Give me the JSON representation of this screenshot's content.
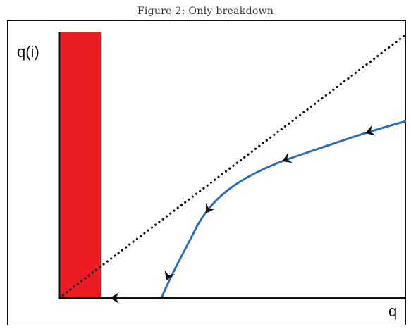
{
  "caption": "Figure 2: Only breakdown",
  "axes": {
    "y_label": "q(i)",
    "x_label": "q"
  },
  "colors": {
    "shaded_region": "#ec1c24",
    "trajectory": "#2f6db5",
    "axis": "#111111",
    "arrowhead": "#111111",
    "diagonal": "#111111"
  },
  "elements": {
    "shaded_region": "red-breakdown-region",
    "diagonal": "dotted-45-degree-line",
    "trajectory": "blue-curve-with-arrows"
  }
}
